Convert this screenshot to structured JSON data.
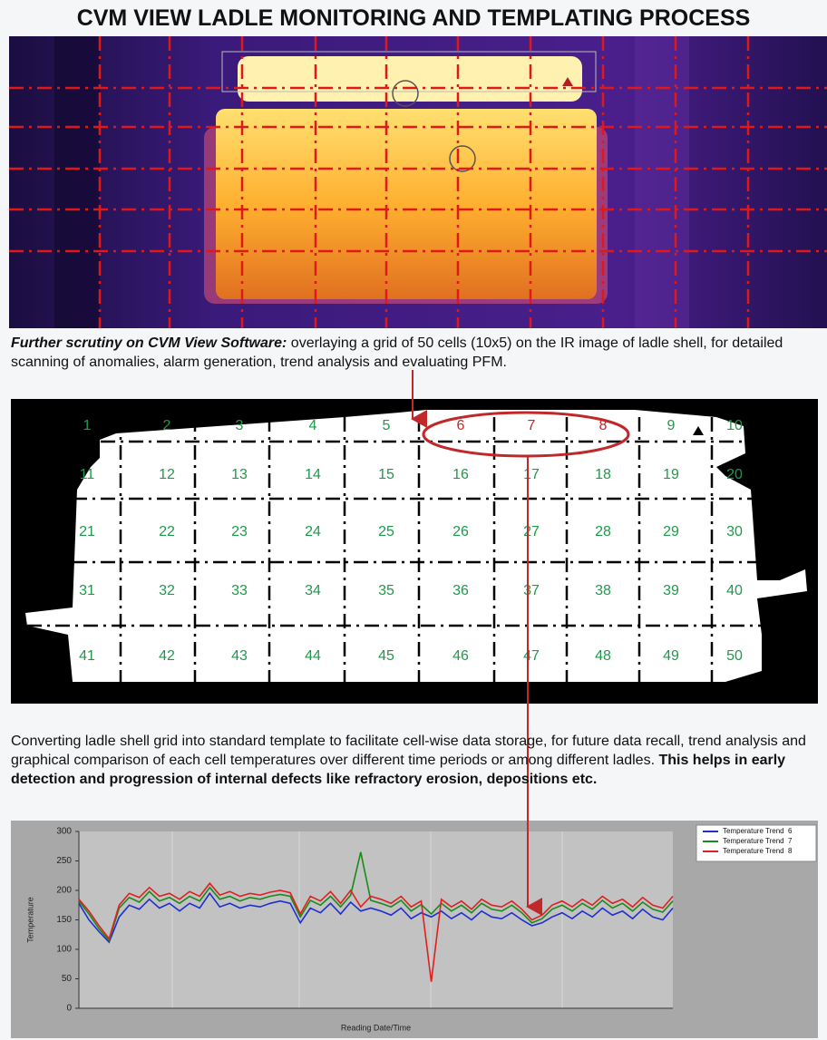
{
  "header": {
    "title": "CVM VIEW LADLE MONITORING AND TEMPLATING PROCESS"
  },
  "caption_1": {
    "lead": "Further scrutiny on CVM View Software:",
    "text": "overlaying a grid of 50 cells (10x5) on the IR image of ladle shell, for detailed scanning of anomalies, alarm generation, trend analysis and evaluating PFM."
  },
  "template": {
    "cells": [
      1,
      2,
      3,
      4,
      5,
      6,
      7,
      8,
      9,
      10,
      11,
      12,
      13,
      14,
      15,
      16,
      17,
      18,
      19,
      20,
      21,
      22,
      23,
      24,
      25,
      26,
      27,
      28,
      29,
      30,
      31,
      32,
      33,
      34,
      35,
      36,
      37,
      38,
      39,
      40,
      41,
      42,
      43,
      44,
      45,
      46,
      47,
      48,
      49,
      50
    ],
    "highlighted": [
      6,
      7,
      8
    ],
    "cell_color": "#1e9a4a",
    "highlight_color": "#c0282a"
  },
  "caption_2": {
    "text": "Converting ladle shell grid into standard template to facilitate cell-wise data storage, for future data recall, trend analysis and graphical comparison of each cell temperatures over different time periods or among different ladles.",
    "emphasis": "This helps in early detection and progression of internal defects like refractory erosion, depositions etc."
  },
  "chart_data": {
    "type": "line",
    "y_label": "Temperature",
    "x_label": "Reading Date/Time",
    "ylim": [
      0,
      300
    ],
    "yticks": [
      0,
      50,
      100,
      150,
      200,
      250,
      300
    ],
    "legend": "upper right",
    "series": [
      {
        "name": "Temperature Trend  6",
        "color": "#1e2fd0",
        "values": [
          178,
          150,
          130,
          112,
          155,
          175,
          168,
          185,
          170,
          178,
          165,
          178,
          170,
          195,
          172,
          178,
          170,
          175,
          172,
          178,
          182,
          178,
          145,
          170,
          162,
          178,
          160,
          180,
          165,
          170,
          165,
          158,
          170,
          152,
          162,
          155,
          165,
          152,
          162,
          150,
          165,
          155,
          152,
          162,
          150,
          140,
          145,
          155,
          162,
          152,
          165,
          155,
          170,
          158,
          165,
          152,
          168,
          155,
          150,
          170
        ]
      },
      {
        "name": "Temperature Trend  7",
        "color": "#1a8a1a",
        "values": [
          182,
          160,
          135,
          115,
          170,
          188,
          180,
          198,
          182,
          188,
          178,
          190,
          182,
          205,
          185,
          190,
          182,
          188,
          185,
          190,
          193,
          190,
          155,
          183,
          175,
          190,
          172,
          192,
          265,
          183,
          178,
          172,
          183,
          165,
          176,
          160,
          178,
          165,
          175,
          162,
          178,
          168,
          165,
          175,
          162,
          145,
          152,
          168,
          175,
          165,
          178,
          168,
          183,
          170,
          178,
          165,
          180,
          168,
          163,
          182
        ]
      },
      {
        "name": "Temperature Trend  8",
        "color": "#e02020",
        "values": [
          185,
          165,
          140,
          118,
          175,
          195,
          188,
          205,
          190,
          195,
          185,
          198,
          190,
          212,
          192,
          198,
          190,
          195,
          192,
          197,
          200,
          196,
          160,
          190,
          182,
          198,
          178,
          200,
          172,
          190,
          185,
          178,
          190,
          172,
          182,
          45,
          185,
          172,
          182,
          168,
          185,
          175,
          172,
          182,
          168,
          150,
          158,
          175,
          182,
          172,
          185,
          175,
          190,
          178,
          185,
          172,
          188,
          175,
          170,
          190
        ]
      }
    ]
  }
}
